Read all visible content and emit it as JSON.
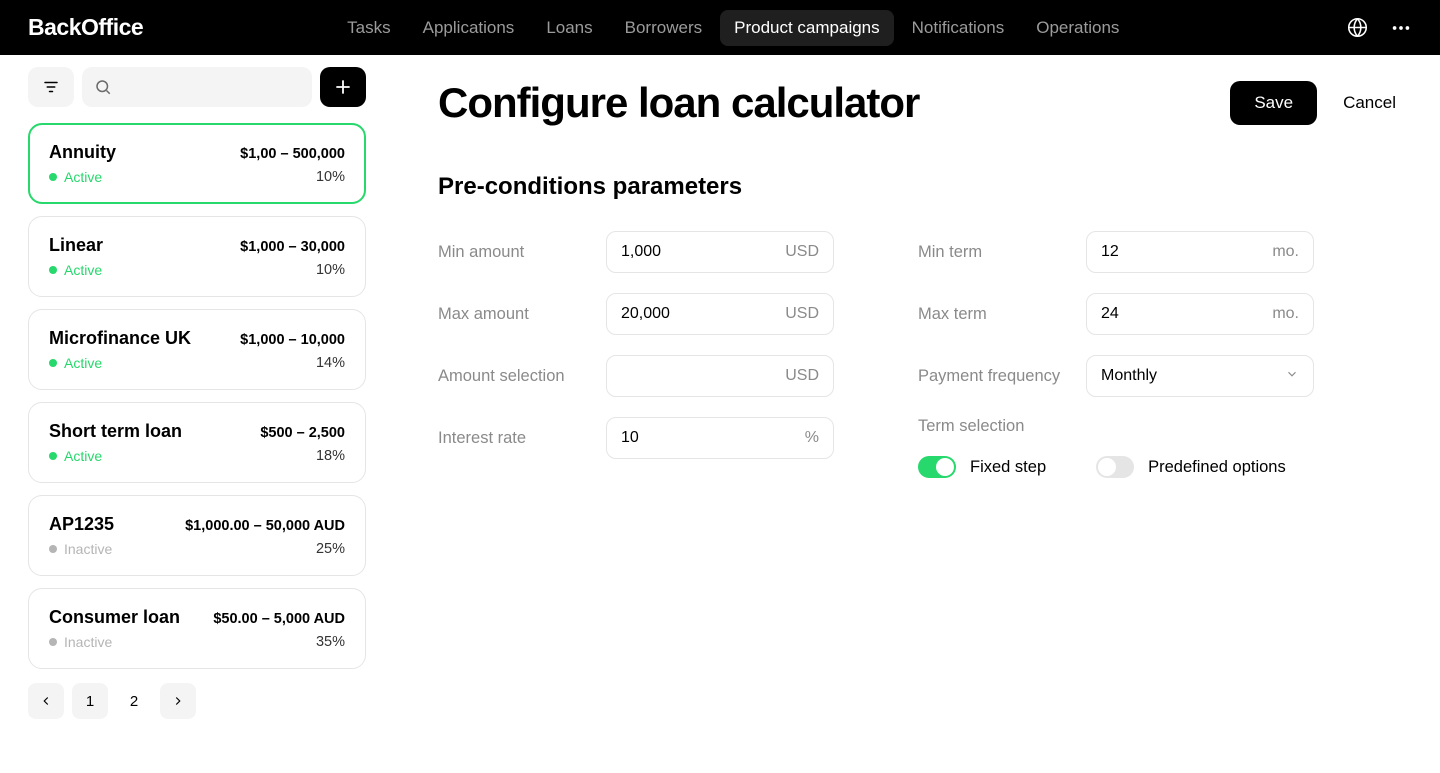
{
  "brand": "BackOffice",
  "nav": {
    "items": [
      {
        "label": "Tasks",
        "active": false
      },
      {
        "label": "Applications",
        "active": false
      },
      {
        "label": "Loans",
        "active": false
      },
      {
        "label": "Borrowers",
        "active": false
      },
      {
        "label": "Product campaigns",
        "active": true
      },
      {
        "label": "Notifications",
        "active": false
      },
      {
        "label": "Operations",
        "active": false
      }
    ]
  },
  "colors": {
    "accent_green": "#27d86c",
    "inactive_gray": "#b5b5b5",
    "text_muted": "#8a8a8a",
    "border": "#e5e5e5",
    "bg_soft": "#f4f4f4"
  },
  "sidebar": {
    "cards": [
      {
        "title": "Annuity",
        "range": "$1,00 – 500,000",
        "status": "Active",
        "status_color": "#27d86c",
        "pct": "10%",
        "selected": true
      },
      {
        "title": "Linear",
        "range": "$1,000 – 30,000",
        "status": "Active",
        "status_color": "#27d86c",
        "pct": "10%",
        "selected": false
      },
      {
        "title": "Microfinance UK",
        "range": "$1,000 – 10,000",
        "status": "Active",
        "status_color": "#27d86c",
        "pct": "14%",
        "selected": false
      },
      {
        "title": "Short term loan",
        "range": "$500 – 2,500",
        "status": "Active",
        "status_color": "#27d86c",
        "pct": "18%",
        "selected": false
      },
      {
        "title": "AP1235",
        "range": "$1,000.00 – 50,000 AUD",
        "status": "Inactive",
        "status_color": "#b5b5b5",
        "pct": "25%",
        "selected": false
      },
      {
        "title": "Consumer loan",
        "range": "$50.00 – 5,000 AUD",
        "status": "Inactive",
        "status_color": "#b5b5b5",
        "pct": "35%",
        "selected": false
      }
    ],
    "pagination": {
      "pages": [
        "1",
        "2"
      ],
      "current": "1"
    }
  },
  "main": {
    "title": "Configure loan calculator",
    "save": "Save",
    "cancel": "Cancel",
    "section": "Pre-conditions parameters",
    "left_fields": [
      {
        "label": "Min amount",
        "value": "1,000",
        "unit": "USD"
      },
      {
        "label": "Max amount",
        "value": "20,000",
        "unit": "USD"
      },
      {
        "label": "Amount selection",
        "value": "",
        "unit": "USD"
      },
      {
        "label": "Interest rate",
        "value": "10",
        "unit": "%"
      }
    ],
    "right_fields": [
      {
        "label": "Min term",
        "value": "12",
        "unit": "mo."
      },
      {
        "label": "Max term",
        "value": "24",
        "unit": "mo."
      }
    ],
    "payment_freq": {
      "label": "Payment frequency",
      "value": "Monthly"
    },
    "term_selection_label": "Term selection",
    "toggles": [
      {
        "label": "Fixed step",
        "on": true
      },
      {
        "label": "Predefined options",
        "on": false
      }
    ]
  }
}
